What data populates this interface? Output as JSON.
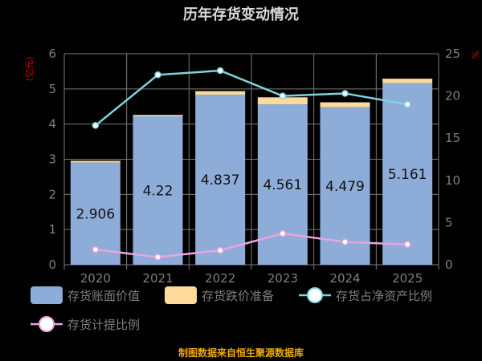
{
  "chart_data": {
    "type": "bar",
    "title": "历年存货变动情况",
    "left_axis_unit": "(亿元)",
    "right_axis_unit": "%",
    "categories": [
      "2020",
      "2021",
      "2022",
      "2023",
      "2024",
      "2025"
    ],
    "bar_series": [
      {
        "name": "存货账面价值",
        "color": "#8eacd8",
        "values": [
          2.906,
          4.22,
          4.837,
          4.561,
          4.479,
          5.161
        ],
        "show_labels": true
      },
      {
        "name": "存货跌价准备",
        "color": "#fdd99b",
        "values": [
          0.05,
          0.04,
          0.1,
          0.2,
          0.14,
          0.13
        ]
      }
    ],
    "line_series": [
      {
        "name": "存货占净资产比例",
        "color": "#7fd3dc",
        "values": [
          16.5,
          22.5,
          23.0,
          20.0,
          20.3,
          19.0
        ]
      },
      {
        "name": "存货计提比例",
        "color": "#e7a4df",
        "values": [
          1.8,
          0.9,
          1.7,
          3.7,
          2.7,
          2.4
        ]
      }
    ],
    "left_axis": {
      "min": 0,
      "max": 6,
      "ticks": [
        "0",
        "1",
        "2",
        "3",
        "4",
        "5",
        "6"
      ]
    },
    "right_axis": {
      "min": 0,
      "max": 25,
      "ticks": [
        "0",
        "5",
        "10",
        "15",
        "20",
        "25"
      ]
    },
    "grid": true,
    "legend_position": "bottom",
    "source": "制图数据来自恒生聚源数据库",
    "colors": {
      "title": "#d8d8d8",
      "text": "#7f7f7f",
      "grid": "#7a7a7a",
      "unit": "#cc0000",
      "source": "#f0a800",
      "label": "#111111"
    }
  }
}
